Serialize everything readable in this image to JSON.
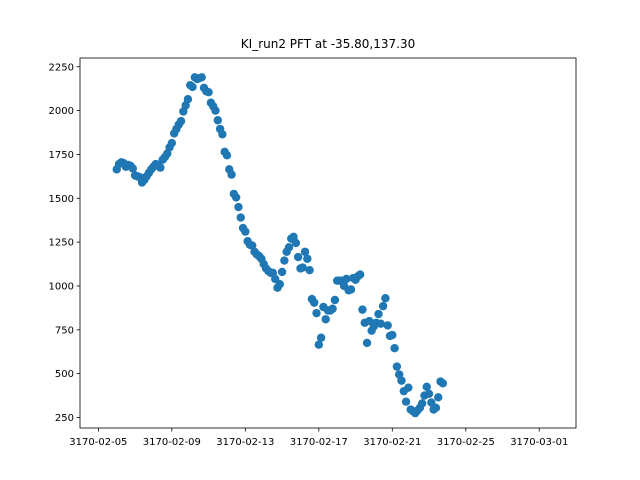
{
  "chart_data": {
    "type": "scatter",
    "title": "KI_run2 PFT at -35.80,137.30",
    "xlabel": "",
    "ylabel": "",
    "grid": false,
    "marker_color": "#1f77b4",
    "xlim": [
      "3170-02-04",
      "3170-03-03"
    ],
    "ylim": [
      190,
      2300
    ],
    "x_ticks": [
      "3170-02-05",
      "3170-02-09",
      "3170-02-13",
      "3170-02-17",
      "3170-02-21",
      "3170-02-25",
      "3170-03-01"
    ],
    "y_ticks": [
      250,
      500,
      750,
      1000,
      1250,
      1500,
      1750,
      2000,
      2250
    ],
    "series": [
      {
        "points": [
          [
            "3170-02-06 00:00",
            1665
          ],
          [
            "3170-02-06 03:00",
            1695
          ],
          [
            "3170-02-06 06:00",
            1705
          ],
          [
            "3170-02-06 09:00",
            1700
          ],
          [
            "3170-02-06 12:00",
            1680
          ],
          [
            "3170-02-06 15:00",
            1690
          ],
          [
            "3170-02-06 18:00",
            1685
          ],
          [
            "3170-02-06 21:00",
            1670
          ],
          [
            "3170-02-07 00:00",
            1630
          ],
          [
            "3170-02-07 03:00",
            1625
          ],
          [
            "3170-02-07 06:00",
            1620
          ],
          [
            "3170-02-07 09:00",
            1590
          ],
          [
            "3170-02-07 12:00",
            1605
          ],
          [
            "3170-02-07 15:00",
            1625
          ],
          [
            "3170-02-07 18:00",
            1645
          ],
          [
            "3170-02-07 21:00",
            1665
          ],
          [
            "3170-02-08 00:00",
            1680
          ],
          [
            "3170-02-08 03:00",
            1695
          ],
          [
            "3170-02-08 06:00",
            1690
          ],
          [
            "3170-02-08 09:00",
            1675
          ],
          [
            "3170-02-08 12:00",
            1720
          ],
          [
            "3170-02-08 15:00",
            1735
          ],
          [
            "3170-02-08 18:00",
            1755
          ],
          [
            "3170-02-08 21:00",
            1790
          ],
          [
            "3170-02-09 00:00",
            1815
          ],
          [
            "3170-02-09 03:00",
            1870
          ],
          [
            "3170-02-09 06:00",
            1895
          ],
          [
            "3170-02-09 09:00",
            1920
          ],
          [
            "3170-02-09 12:00",
            1940
          ],
          [
            "3170-02-09 15:00",
            1995
          ],
          [
            "3170-02-09 18:00",
            2030
          ],
          [
            "3170-02-09 21:00",
            2065
          ],
          [
            "3170-02-10 00:00",
            2145
          ],
          [
            "3170-02-10 03:00",
            2135
          ],
          [
            "3170-02-10 06:00",
            2190
          ],
          [
            "3170-02-10 09:00",
            2180
          ],
          [
            "3170-02-10 12:00",
            2185
          ],
          [
            "3170-02-10 15:00",
            2190
          ],
          [
            "3170-02-10 18:00",
            2130
          ],
          [
            "3170-02-10 21:00",
            2110
          ],
          [
            "3170-02-11 00:00",
            2105
          ],
          [
            "3170-02-11 03:00",
            2045
          ],
          [
            "3170-02-11 06:00",
            2025
          ],
          [
            "3170-02-11 09:00",
            2000
          ],
          [
            "3170-02-11 12:00",
            1945
          ],
          [
            "3170-02-11 15:00",
            1895
          ],
          [
            "3170-02-11 18:00",
            1865
          ],
          [
            "3170-02-11 21:00",
            1765
          ],
          [
            "3170-02-12 00:00",
            1745
          ],
          [
            "3170-02-12 03:00",
            1665
          ],
          [
            "3170-02-12 06:00",
            1635
          ],
          [
            "3170-02-12 09:00",
            1525
          ],
          [
            "3170-02-12 12:00",
            1505
          ],
          [
            "3170-02-12 15:00",
            1450
          ],
          [
            "3170-02-12 18:00",
            1390
          ],
          [
            "3170-02-12 21:00",
            1330
          ],
          [
            "3170-02-13 00:00",
            1310
          ],
          [
            "3170-02-13 03:00",
            1255
          ],
          [
            "3170-02-13 06:00",
            1235
          ],
          [
            "3170-02-13 09:00",
            1230
          ],
          [
            "3170-02-13 12:00",
            1195
          ],
          [
            "3170-02-13 15:00",
            1180
          ],
          [
            "3170-02-13 18:00",
            1170
          ],
          [
            "3170-02-13 21:00",
            1155
          ],
          [
            "3170-02-14 00:00",
            1125
          ],
          [
            "3170-02-14 03:00",
            1100
          ],
          [
            "3170-02-14 06:00",
            1085
          ],
          [
            "3170-02-14 09:00",
            1075
          ],
          [
            "3170-02-14 12:00",
            1075
          ],
          [
            "3170-02-14 15:00",
            1040
          ],
          [
            "3170-02-14 18:00",
            990
          ],
          [
            "3170-02-14 21:00",
            1010
          ],
          [
            "3170-02-15 00:00",
            1080
          ],
          [
            "3170-02-15 03:00",
            1145
          ],
          [
            "3170-02-15 06:00",
            1195
          ],
          [
            "3170-02-15 09:00",
            1220
          ],
          [
            "3170-02-15 12:00",
            1270
          ],
          [
            "3170-02-15 15:00",
            1280
          ],
          [
            "3170-02-15 18:00",
            1245
          ],
          [
            "3170-02-15 21:00",
            1165
          ],
          [
            "3170-02-16 00:00",
            1100
          ],
          [
            "3170-02-16 03:00",
            1105
          ],
          [
            "3170-02-16 06:00",
            1195
          ],
          [
            "3170-02-16 09:00",
            1155
          ],
          [
            "3170-02-16 12:00",
            1090
          ],
          [
            "3170-02-16 15:00",
            925
          ],
          [
            "3170-02-16 18:00",
            905
          ],
          [
            "3170-02-16 21:00",
            845
          ],
          [
            "3170-02-17 00:00",
            665
          ],
          [
            "3170-02-17 03:00",
            705
          ],
          [
            "3170-02-17 06:00",
            880
          ],
          [
            "3170-02-17 09:00",
            810
          ],
          [
            "3170-02-17 12:00",
            860
          ],
          [
            "3170-02-17 15:00",
            860
          ],
          [
            "3170-02-17 18:00",
            870
          ],
          [
            "3170-02-17 21:00",
            920
          ],
          [
            "3170-02-18 00:00",
            1030
          ],
          [
            "3170-02-18 03:00",
            1030
          ],
          [
            "3170-02-18 06:00",
            1030
          ],
          [
            "3170-02-18 09:00",
            1000
          ],
          [
            "3170-02-18 12:00",
            1040
          ],
          [
            "3170-02-18 15:00",
            975
          ],
          [
            "3170-02-18 18:00",
            980
          ],
          [
            "3170-02-18 21:00",
            1045
          ],
          [
            "3170-02-19 00:00",
            1035
          ],
          [
            "3170-02-19 03:00",
            1055
          ],
          [
            "3170-02-19 06:00",
            1065
          ],
          [
            "3170-02-19 09:00",
            865
          ],
          [
            "3170-02-19 12:00",
            790
          ],
          [
            "3170-02-19 15:00",
            675
          ],
          [
            "3170-02-19 18:00",
            800
          ],
          [
            "3170-02-19 21:00",
            745
          ],
          [
            "3170-02-20 00:00",
            770
          ],
          [
            "3170-02-20 03:00",
            790
          ],
          [
            "3170-02-20 06:00",
            840
          ],
          [
            "3170-02-20 09:00",
            785
          ],
          [
            "3170-02-20 12:00",
            885
          ],
          [
            "3170-02-20 15:00",
            930
          ],
          [
            "3170-02-20 18:00",
            775
          ],
          [
            "3170-02-20 21:00",
            715
          ],
          [
            "3170-02-21 00:00",
            720
          ],
          [
            "3170-02-21 03:00",
            645
          ],
          [
            "3170-02-21 06:00",
            540
          ],
          [
            "3170-02-21 09:00",
            495
          ],
          [
            "3170-02-21 12:00",
            460
          ],
          [
            "3170-02-21 15:00",
            400
          ],
          [
            "3170-02-21 18:00",
            340
          ],
          [
            "3170-02-21 21:00",
            420
          ],
          [
            "3170-02-22 00:00",
            295
          ],
          [
            "3170-02-22 03:00",
            285
          ],
          [
            "3170-02-22 06:00",
            275
          ],
          [
            "3170-02-22 09:00",
            290
          ],
          [
            "3170-02-22 12:00",
            305
          ],
          [
            "3170-02-22 15:00",
            330
          ],
          [
            "3170-02-22 18:00",
            375
          ],
          [
            "3170-02-22 21:00",
            425
          ],
          [
            "3170-02-23 00:00",
            385
          ],
          [
            "3170-02-23 03:00",
            335
          ],
          [
            "3170-02-23 06:00",
            295
          ],
          [
            "3170-02-23 09:00",
            305
          ],
          [
            "3170-02-23 12:00",
            365
          ],
          [
            "3170-02-23 15:00",
            455
          ],
          [
            "3170-02-23 18:00",
            445
          ]
        ]
      }
    ]
  }
}
